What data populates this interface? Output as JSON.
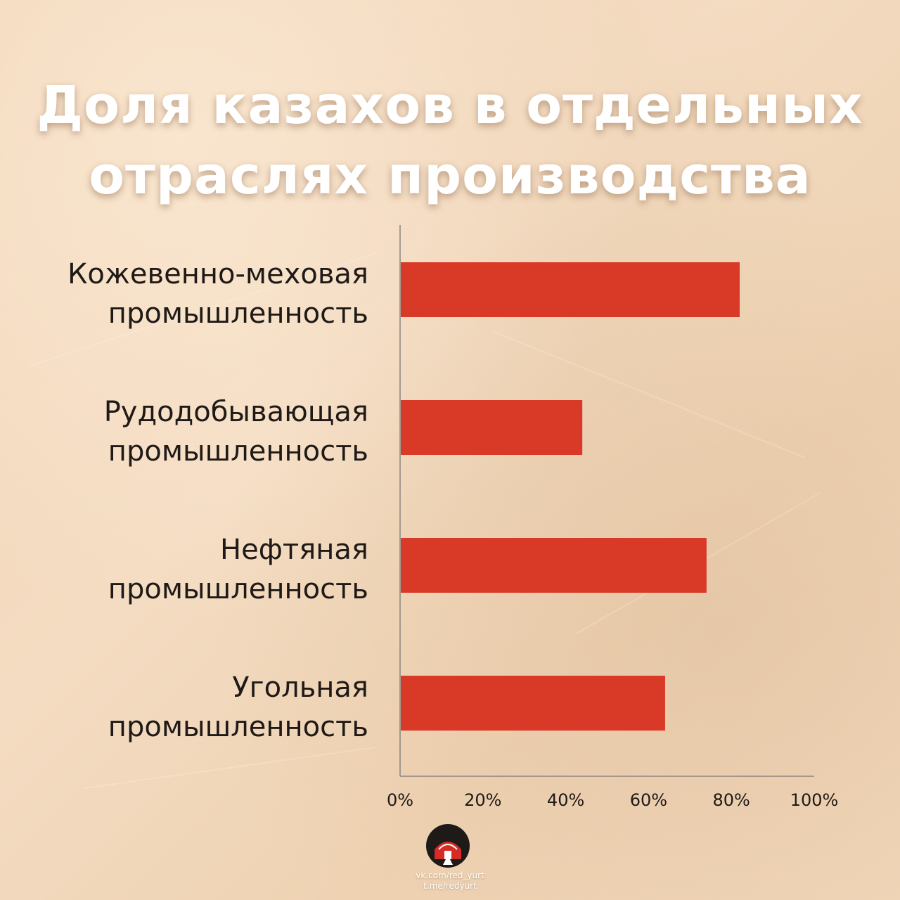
{
  "page": {
    "title_line1": "Доля казахов в отдельных",
    "title_line2": "отраслях производства"
  },
  "chart_data": {
    "type": "bar",
    "orientation": "horizontal",
    "categories": [
      [
        "Кожевенно-меховая",
        "промышленность"
      ],
      [
        "Рудодобывающая",
        "промышленность"
      ],
      [
        "Нефтяная",
        "промышленность"
      ],
      [
        "Угольная",
        "промышленность"
      ]
    ],
    "values": [
      82,
      44,
      74,
      64
    ],
    "xlim": [
      0,
      100
    ],
    "xticks": [
      "0%",
      "20%",
      "40%",
      "60%",
      "80%",
      "100%"
    ],
    "bar_color": "#d93a27",
    "grid": false
  },
  "branding": {
    "logo_icon": "yurt-icon",
    "line1": "vk.com/red_yurt",
    "line2": "t.me/redyurt"
  }
}
